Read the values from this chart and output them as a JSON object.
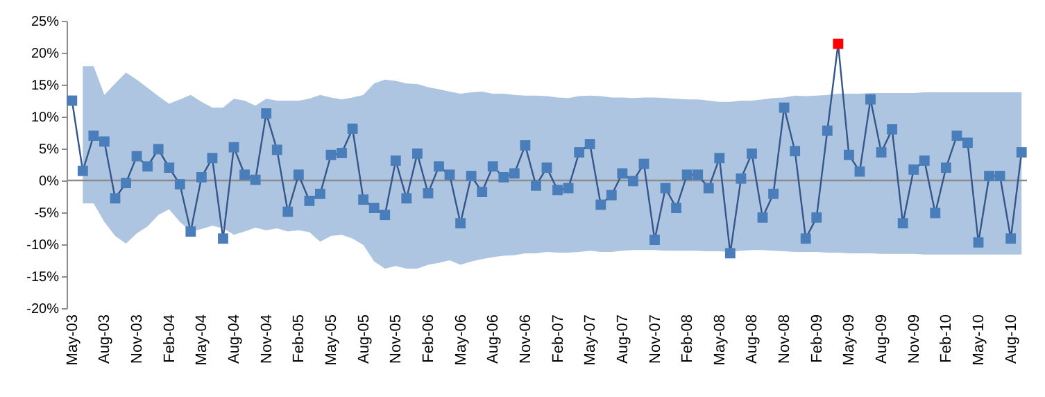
{
  "chart_data": {
    "type": "line",
    "categories": [
      "May-03",
      null,
      null,
      "Aug-03",
      null,
      null,
      "Nov-03",
      null,
      null,
      "Feb-04",
      null,
      null,
      "May-04",
      null,
      null,
      "Aug-04",
      null,
      null,
      "Nov-04",
      null,
      null,
      "Feb-05",
      null,
      null,
      "May-05",
      null,
      null,
      "Aug-05",
      null,
      null,
      "Nov-05",
      null,
      null,
      "Feb-06",
      null,
      null,
      "May-06",
      null,
      null,
      "Aug-06",
      null,
      null,
      "Nov-06",
      null,
      null,
      "Feb-07",
      null,
      null,
      "May-07",
      null,
      null,
      "Aug-07",
      null,
      null,
      "Nov-07",
      null,
      null,
      "Feb-08",
      null,
      null,
      "May-08",
      null,
      null,
      "Aug-08",
      null,
      null,
      "Nov-08",
      null,
      null,
      "Feb-09",
      null,
      null,
      "May-09",
      null,
      null,
      "Aug-09",
      null,
      null,
      "Nov-09",
      null,
      null,
      "Feb-10",
      null,
      null,
      "May-10",
      null,
      null,
      "Aug-10",
      null
    ],
    "series": [
      {
        "color": "#34568b",
        "values": [
          12.5,
          1.5,
          7.0,
          6.1,
          -2.8,
          -0.4,
          3.8,
          2.2,
          4.9,
          2.0,
          -0.6,
          -8.0,
          0.5,
          3.5,
          -9.1,
          5.2,
          0.9,
          0.1,
          10.5,
          4.8,
          -4.9,
          0.9,
          -3.2,
          -2.1,
          4.0,
          4.3,
          8.1,
          -3.0,
          -4.3,
          -5.4,
          3.1,
          -2.8,
          4.2,
          -2.0,
          2.2,
          0.9,
          -6.7,
          0.7,
          -1.8,
          2.2,
          0.5,
          1.1,
          5.5,
          -0.8,
          2.0,
          -1.5,
          -1.2,
          4.4,
          5.7,
          -3.8,
          -2.3,
          1.1,
          -0.1,
          2.6,
          -9.3,
          -1.2,
          -4.3,
          0.9,
          0.9,
          -1.2,
          3.5,
          -11.4,
          0.3,
          4.2,
          -5.8,
          -2.1,
          11.4,
          4.6,
          -9.1,
          -5.8,
          7.8,
          21.4,
          4.0,
          1.4,
          12.7,
          4.4,
          8.0,
          -6.7,
          1.7,
          3.1,
          -5.1,
          2.0,
          7.0,
          5.9,
          -9.7,
          0.7,
          0.7,
          -9.1,
          4.4
        ],
        "upper": [
          null,
          17.9,
          17.9,
          13.4,
          15.2,
          16.9,
          15.8,
          14.5,
          13.2,
          12.0,
          12.7,
          13.4,
          12.3,
          11.4,
          11.4,
          12.8,
          12.5,
          11.7,
          12.8,
          12.5,
          12.5,
          12.5,
          12.8,
          13.4,
          13.0,
          12.7,
          13.0,
          13.4,
          15.2,
          15.8,
          15.6,
          15.2,
          15.1,
          14.6,
          14.3,
          13.9,
          13.6,
          13.8,
          13.9,
          13.6,
          13.6,
          13.4,
          13.3,
          13.3,
          13.2,
          13.0,
          12.9,
          13.2,
          13.3,
          13.2,
          13.0,
          13.0,
          12.9,
          13.0,
          13.0,
          12.9,
          12.8,
          12.7,
          12.7,
          12.5,
          12.3,
          12.3,
          12.5,
          12.5,
          12.7,
          12.9,
          13.0,
          13.3,
          13.2,
          13.3,
          13.4,
          13.6,
          13.6,
          13.6,
          13.7,
          13.7,
          13.7,
          13.7,
          13.7,
          13.8,
          13.8,
          13.8,
          13.8,
          13.8,
          13.8,
          13.8,
          13.8,
          13.8,
          13.8
        ],
        "lower": [
          null,
          -3.6,
          -3.6,
          -6.5,
          -8.7,
          -9.9,
          -8.3,
          -7.2,
          -5.4,
          -4.5,
          -6.5,
          -8.0,
          -7.6,
          -7.1,
          -7.5,
          -8.5,
          -8.0,
          -7.4,
          -7.8,
          -7.5,
          -8.0,
          -7.8,
          -8.1,
          -9.6,
          -8.7,
          -8.5,
          -9.1,
          -10.1,
          -12.7,
          -13.8,
          -13.4,
          -13.8,
          -13.8,
          -13.2,
          -12.9,
          -12.5,
          -13.2,
          -12.7,
          -12.3,
          -12.0,
          -11.8,
          -11.7,
          -11.4,
          -11.4,
          -11.2,
          -11.3,
          -11.3,
          -11.2,
          -11.0,
          -11.2,
          -11.2,
          -11.0,
          -10.9,
          -10.9,
          -10.9,
          -11.0,
          -11.0,
          -11.0,
          -11.0,
          -11.1,
          -11.1,
          -11.2,
          -11.0,
          -10.9,
          -10.9,
          -11.0,
          -11.1,
          -11.2,
          -11.2,
          -11.2,
          -11.3,
          -11.3,
          -11.4,
          -11.4,
          -11.4,
          -11.5,
          -11.5,
          -11.5,
          -11.5,
          -11.6,
          -11.6,
          -11.6,
          -11.6,
          -11.6,
          -11.6,
          -11.6,
          -11.6,
          -11.6,
          -11.6
        ],
        "colors": [
          "#4a7ebb",
          "#4a7ebb",
          "#4a7ebb",
          "#4a7ebb",
          "#4a7ebb",
          "#4a7ebb",
          "#4a7ebb",
          "#4a7ebb",
          "#4a7ebb",
          "#4a7ebb",
          "#4a7ebb",
          "#4a7ebb",
          "#4a7ebb",
          "#4a7ebb",
          "#4a7ebb",
          "#4a7ebb",
          "#4a7ebb",
          "#4a7ebb",
          "#4a7ebb",
          "#4a7ebb",
          "#4a7ebb",
          "#4a7ebb",
          "#4a7ebb",
          "#4a7ebb",
          "#4a7ebb",
          "#4a7ebb",
          "#4a7ebb",
          "#4a7ebb",
          "#4a7ebb",
          "#4a7ebb",
          "#4a7ebb",
          "#4a7ebb",
          "#4a7ebb",
          "#4a7ebb",
          "#4a7ebb",
          "#4a7ebb",
          "#4a7ebb",
          "#4a7ebb",
          "#4a7ebb",
          "#4a7ebb",
          "#4a7ebb",
          "#4a7ebb",
          "#4a7ebb",
          "#4a7ebb",
          "#4a7ebb",
          "#4a7ebb",
          "#4a7ebb",
          "#4a7ebb",
          "#4a7ebb",
          "#4a7ebb",
          "#4a7ebb",
          "#4a7ebb",
          "#4a7ebb",
          "#4a7ebb",
          "#4a7ebb",
          "#4a7ebb",
          "#4a7ebb",
          "#4a7ebb",
          "#4a7ebb",
          "#4a7ebb",
          "#4a7ebb",
          "#4a7ebb",
          "#4a7ebb",
          "#4a7ebb",
          "#4a7ebb",
          "#4a7ebb",
          "#4a7ebb",
          "#4a7ebb",
          "#4a7ebb",
          "#4a7ebb",
          "#4a7ebb",
          "#ff0000",
          "#4a7ebb",
          "#4a7ebb",
          "#4a7ebb",
          "#4a7ebb",
          "#4a7ebb",
          "#4a7ebb",
          "#4a7ebb",
          "#4a7ebb",
          "#4a7ebb",
          "#4a7ebb",
          "#4a7ebb",
          "#4a7ebb",
          "#4a7ebb",
          "#4a7ebb",
          "#4a7ebb",
          "#4a7ebb",
          "#4a7ebb"
        ]
      }
    ],
    "ylim": [
      -20,
      25
    ],
    "yticks": [
      {
        "value": -20,
        "label": "-20%"
      },
      {
        "value": -15,
        "label": "-15%"
      },
      {
        "value": -10,
        "label": "-10%"
      },
      {
        "value": -5,
        "label": "-5%"
      },
      {
        "value": 0,
        "label": "0%"
      },
      {
        "value": 5,
        "label": "5%"
      },
      {
        "value": 10,
        "label": "10%"
      },
      {
        "value": 15,
        "label": "15%"
      },
      {
        "value": 20,
        "label": "20%"
      },
      {
        "value": 25,
        "label": "25%"
      }
    ],
    "ref_lines": [
      {
        "axis": "y",
        "value": 0,
        "color": "#8c8c8c"
      }
    ],
    "marker": "square",
    "line_style": "solid"
  }
}
